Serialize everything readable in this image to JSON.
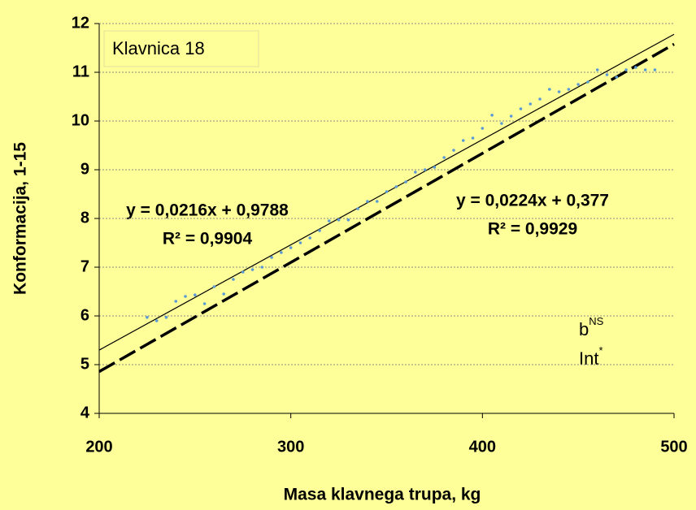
{
  "chart_data": {
    "type": "scatter",
    "annotation_box": "Klavnica 18",
    "xlabel": "Masa klavnega trupa, kg",
    "ylabel": "Konformacija, 1-15",
    "xlim": [
      200,
      500
    ],
    "xticks": [
      200,
      300,
      400,
      500
    ],
    "ylim": [
      4,
      12
    ],
    "yticks": [
      4,
      5,
      6,
      7,
      8,
      9,
      10,
      11,
      12
    ],
    "grid": true,
    "point_color": "#5b9bd5",
    "x": [
      225,
      230,
      235,
      240,
      245,
      250,
      255,
      260,
      265,
      270,
      275,
      280,
      285,
      290,
      295,
      300,
      305,
      310,
      315,
      320,
      325,
      330,
      335,
      340,
      345,
      350,
      355,
      360,
      365,
      370,
      375,
      380,
      385,
      390,
      395,
      400,
      405,
      410,
      415,
      420,
      425,
      430,
      435,
      440,
      445,
      450,
      455,
      460,
      465,
      470,
      475,
      480,
      485,
      490
    ],
    "values": [
      5.97,
      5.9,
      5.97,
      6.3,
      6.4,
      6.43,
      6.25,
      6.6,
      6.45,
      6.75,
      6.9,
      6.95,
      7.0,
      7.2,
      7.3,
      7.4,
      7.5,
      7.6,
      7.75,
      7.95,
      7.97,
      7.97,
      8.2,
      8.35,
      8.35,
      8.55,
      8.65,
      8.75,
      8.95,
      9.0,
      9.05,
      9.25,
      9.4,
      9.6,
      9.65,
      9.85,
      10.12,
      9.95,
      10.1,
      10.25,
      10.35,
      10.45,
      10.65,
      10.6,
      10.65,
      10.75,
      10.8,
      11.05,
      10.95,
      10.9,
      11.05,
      11.1,
      11.05,
      11.05
    ],
    "lines": [
      {
        "style": "solid",
        "equation": "y = 0,0216x + 0,9788",
        "r2": "R² = 0,9904",
        "x": [
          200,
          500
        ],
        "y": [
          5.2988,
          11.7788
        ]
      },
      {
        "style": "dashed",
        "equation": "y = 0,0224x + 0,377",
        "r2": "R² = 0,9929",
        "x": [
          200,
          500
        ],
        "y": [
          4.857,
          11.577
        ]
      }
    ],
    "notes": [
      {
        "base": "b",
        "sup": "NS"
      },
      {
        "base": "Int",
        "sup": "*"
      }
    ]
  }
}
